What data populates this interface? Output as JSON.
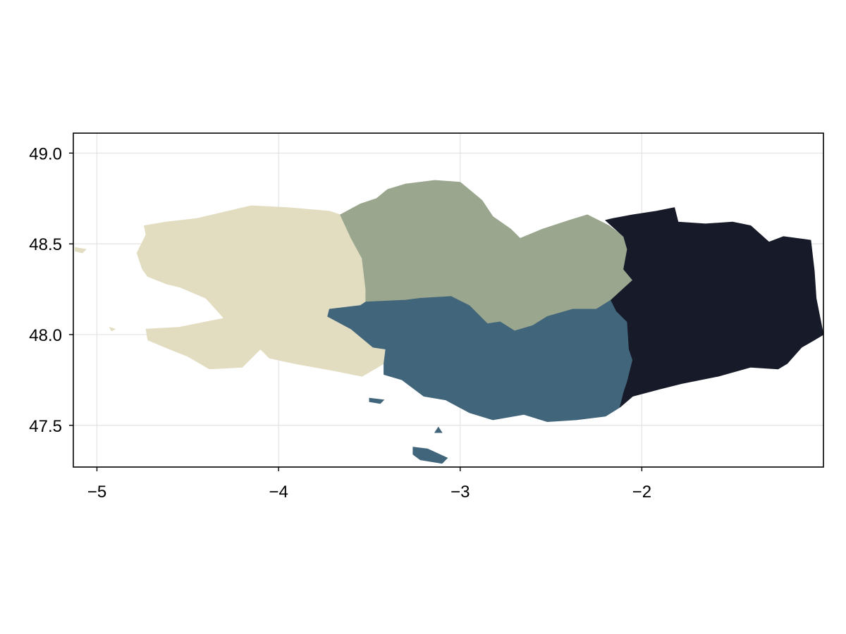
{
  "chart_data": {
    "type": "map",
    "title": "",
    "xlabel": "",
    "ylabel": "",
    "xlim": [
      -5.13,
      -1.0
    ],
    "ylim": [
      47.27,
      49.11
    ],
    "grid": true,
    "x_ticks": [
      {
        "value": -5,
        "label": "−5"
      },
      {
        "value": -4,
        "label": "−4"
      },
      {
        "value": -3,
        "label": "−3"
      },
      {
        "value": -2,
        "label": "−2"
      }
    ],
    "y_ticks": [
      {
        "value": 47.5,
        "label": "47.5"
      },
      {
        "value": 48.0,
        "label": "48.0"
      },
      {
        "value": 48.5,
        "label": "48.5"
      },
      {
        "value": 49.0,
        "label": "49.0"
      }
    ],
    "regions": [
      {
        "id": "west",
        "color": "#e2ddc0",
        "outline": [
          [
            -4.74,
            48.6
          ],
          [
            -4.62,
            48.62
          ],
          [
            -4.45,
            48.64
          ],
          [
            -4.32,
            48.67
          ],
          [
            -4.15,
            48.71
          ],
          [
            -3.95,
            48.7
          ],
          [
            -3.72,
            48.68
          ],
          [
            -3.66,
            48.66
          ],
          [
            -3.6,
            48.53
          ],
          [
            -3.54,
            48.42
          ],
          [
            -3.52,
            48.25
          ],
          [
            -3.52,
            48.18
          ],
          [
            -3.55,
            48.16
          ],
          [
            -3.72,
            48.14
          ],
          [
            -3.73,
            48.1
          ],
          [
            -3.6,
            48.03
          ],
          [
            -3.48,
            47.93
          ],
          [
            -3.41,
            47.92
          ],
          [
            -3.42,
            47.84
          ],
          [
            -3.54,
            47.77
          ],
          [
            -3.69,
            47.8
          ],
          [
            -3.91,
            47.84
          ],
          [
            -4.05,
            47.87
          ],
          [
            -4.1,
            47.92
          ],
          [
            -4.2,
            47.82
          ],
          [
            -4.38,
            47.81
          ],
          [
            -4.5,
            47.88
          ],
          [
            -4.6,
            47.92
          ],
          [
            -4.72,
            47.97
          ],
          [
            -4.73,
            48.03
          ],
          [
            -4.55,
            48.04
          ],
          [
            -4.3,
            48.09
          ],
          [
            -4.4,
            48.2
          ],
          [
            -4.54,
            48.26
          ],
          [
            -4.62,
            48.28
          ],
          [
            -4.72,
            48.32
          ],
          [
            -4.75,
            48.36
          ],
          [
            -4.78,
            48.45
          ],
          [
            -4.73,
            48.55
          ]
        ],
        "islands": [
          [
            [
              -5.12,
              48.48
            ],
            [
              -5.06,
              48.47
            ],
            [
              -5.08,
              48.45
            ],
            [
              -5.12,
              48.46
            ]
          ],
          [
            [
              -4.93,
              48.04
            ],
            [
              -4.9,
              48.03
            ],
            [
              -4.92,
              48.02
            ]
          ]
        ]
      },
      {
        "id": "north",
        "color": "#9aa68e",
        "outline": [
          [
            -3.66,
            48.66
          ],
          [
            -3.55,
            48.72
          ],
          [
            -3.46,
            48.75
          ],
          [
            -3.4,
            48.8
          ],
          [
            -3.3,
            48.83
          ],
          [
            -3.14,
            48.85
          ],
          [
            -3.0,
            48.84
          ],
          [
            -2.88,
            48.74
          ],
          [
            -2.82,
            48.65
          ],
          [
            -2.72,
            48.58
          ],
          [
            -2.67,
            48.53
          ],
          [
            -2.55,
            48.58
          ],
          [
            -2.4,
            48.63
          ],
          [
            -2.3,
            48.66
          ],
          [
            -2.18,
            48.6
          ],
          [
            -2.1,
            48.54
          ],
          [
            -2.08,
            48.47
          ],
          [
            -2.1,
            48.36
          ],
          [
            -2.05,
            48.3
          ],
          [
            -2.17,
            48.19
          ],
          [
            -2.25,
            48.14
          ],
          [
            -2.38,
            48.14
          ],
          [
            -2.52,
            48.1
          ],
          [
            -2.6,
            48.05
          ],
          [
            -2.7,
            48.02
          ],
          [
            -2.78,
            48.07
          ],
          [
            -2.85,
            48.06
          ],
          [
            -2.95,
            48.16
          ],
          [
            -3.05,
            48.21
          ],
          [
            -3.22,
            48.2
          ],
          [
            -3.3,
            48.19
          ],
          [
            -3.52,
            48.18
          ],
          [
            -3.52,
            48.25
          ],
          [
            -3.54,
            48.42
          ],
          [
            -3.6,
            48.53
          ]
        ],
        "islands": []
      },
      {
        "id": "south",
        "color": "#41657a",
        "outline": [
          [
            -3.72,
            48.14
          ],
          [
            -3.55,
            48.16
          ],
          [
            -3.52,
            48.18
          ],
          [
            -3.3,
            48.19
          ],
          [
            -3.22,
            48.2
          ],
          [
            -3.05,
            48.21
          ],
          [
            -2.95,
            48.16
          ],
          [
            -2.85,
            48.06
          ],
          [
            -2.78,
            48.07
          ],
          [
            -2.7,
            48.02
          ],
          [
            -2.6,
            48.05
          ],
          [
            -2.52,
            48.1
          ],
          [
            -2.38,
            48.14
          ],
          [
            -2.25,
            48.14
          ],
          [
            -2.17,
            48.19
          ],
          [
            -2.14,
            48.13
          ],
          [
            -2.08,
            48.07
          ],
          [
            -2.07,
            47.92
          ],
          [
            -2.05,
            47.86
          ],
          [
            -2.08,
            47.74
          ],
          [
            -2.1,
            47.68
          ],
          [
            -2.12,
            47.6
          ],
          [
            -2.2,
            47.55
          ],
          [
            -2.36,
            47.53
          ],
          [
            -2.52,
            47.52
          ],
          [
            -2.65,
            47.56
          ],
          [
            -2.82,
            47.53
          ],
          [
            -2.95,
            47.57
          ],
          [
            -3.08,
            47.64
          ],
          [
            -3.2,
            47.66
          ],
          [
            -3.32,
            47.75
          ],
          [
            -3.42,
            47.78
          ],
          [
            -3.42,
            47.84
          ],
          [
            -3.41,
            47.92
          ],
          [
            -3.48,
            47.93
          ],
          [
            -3.6,
            48.03
          ],
          [
            -3.73,
            48.1
          ]
        ],
        "islands": [
          [
            [
              -3.26,
              47.38
            ],
            [
              -3.18,
              47.37
            ],
            [
              -3.07,
              47.32
            ],
            [
              -3.1,
              47.29
            ],
            [
              -3.22,
              47.31
            ],
            [
              -3.26,
              47.34
            ]
          ],
          [
            [
              -3.5,
              47.65
            ],
            [
              -3.42,
              47.64
            ],
            [
              -3.44,
              47.62
            ],
            [
              -3.5,
              47.63
            ]
          ],
          [
            [
              -3.12,
              47.49
            ],
            [
              -3.1,
              47.46
            ],
            [
              -3.14,
              47.46
            ]
          ]
        ]
      },
      {
        "id": "east",
        "color": "#171a28",
        "outline": [
          [
            -2.1,
            48.54
          ],
          [
            -2.2,
            48.63
          ],
          [
            -2.16,
            48.64
          ],
          [
            -2.05,
            48.66
          ],
          [
            -1.92,
            48.68
          ],
          [
            -1.82,
            48.7
          ],
          [
            -1.8,
            48.62
          ],
          [
            -1.65,
            48.61
          ],
          [
            -1.5,
            48.62
          ],
          [
            -1.4,
            48.6
          ],
          [
            -1.3,
            48.51
          ],
          [
            -1.22,
            48.54
          ],
          [
            -1.07,
            48.52
          ],
          [
            -1.05,
            48.35
          ],
          [
            -1.04,
            48.2
          ],
          [
            -1.02,
            48.1
          ],
          [
            -1.0,
            48.0
          ],
          [
            -1.05,
            47.97
          ],
          [
            -1.12,
            47.93
          ],
          [
            -1.2,
            47.84
          ],
          [
            -1.25,
            47.81
          ],
          [
            -1.4,
            47.82
          ],
          [
            -1.58,
            47.77
          ],
          [
            -1.78,
            47.73
          ],
          [
            -1.9,
            47.7
          ],
          [
            -2.05,
            47.66
          ],
          [
            -2.12,
            47.6
          ],
          [
            -2.1,
            47.68
          ],
          [
            -2.08,
            47.74
          ],
          [
            -2.05,
            47.86
          ],
          [
            -2.07,
            47.92
          ],
          [
            -2.08,
            48.07
          ],
          [
            -2.14,
            48.13
          ],
          [
            -2.17,
            48.19
          ],
          [
            -2.05,
            48.3
          ],
          [
            -2.1,
            48.36
          ],
          [
            -2.08,
            48.47
          ]
        ],
        "islands": []
      }
    ]
  }
}
